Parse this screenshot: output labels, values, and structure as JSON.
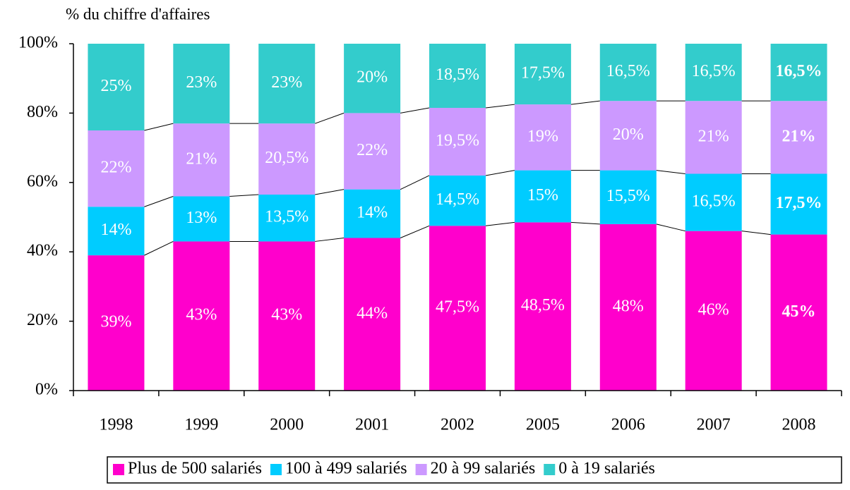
{
  "chart_data": {
    "type": "stacked_bar",
    "y_axis_label": "% du chiffre d'affaires",
    "categories": [
      "1998",
      "1999",
      "2000",
      "2001",
      "2002",
      "2005",
      "2006",
      "2007",
      "2008"
    ],
    "series": [
      {
        "name": "Plus de 500 salariés",
        "color": "#ff00cc",
        "values": [
          39,
          43,
          43,
          44,
          47.5,
          48.5,
          48,
          46,
          45
        ],
        "value_labels": [
          "39%",
          "43%",
          "43%",
          "44%",
          "47,5%",
          "48,5%",
          "48%",
          "46%",
          "45%"
        ]
      },
      {
        "name": "100 à 499 salariés",
        "color": "#00ccff",
        "values": [
          14,
          13,
          13.5,
          14,
          14.5,
          15,
          15.5,
          16.5,
          17.5
        ],
        "value_labels": [
          "14%",
          "13%",
          "13,5%",
          "14%",
          "14,5%",
          "15%",
          "15,5%",
          "16,5%",
          "17,5%"
        ]
      },
      {
        "name": "20 à 99 salariés",
        "color": "#cc99ff",
        "values": [
          22,
          21,
          20.5,
          22,
          19.5,
          19,
          20,
          21,
          21
        ],
        "value_labels": [
          "22%",
          "21%",
          "20,5%",
          "22%",
          "19,5%",
          "19%",
          "20%",
          "21%",
          "21%"
        ]
      },
      {
        "name": "0 à 19 salariés",
        "color": "#33cccc",
        "values": [
          25,
          23,
          23,
          20,
          18.5,
          17.5,
          16.5,
          16.5,
          16.5
        ],
        "value_labels": [
          "25%",
          "23%",
          "23%",
          "20%",
          "18,5%",
          "17,5%",
          "16,5%",
          "16,5%",
          "16,5%"
        ]
      }
    ],
    "ylim": [
      0,
      100
    ],
    "yticks": [
      {
        "value": 0,
        "label": "0%"
      },
      {
        "value": 20,
        "label": "20%"
      },
      {
        "value": 40,
        "label": "40%"
      },
      {
        "value": 60,
        "label": "60%"
      },
      {
        "value": 80,
        "label": "80%"
      },
      {
        "value": 100,
        "label": "100%"
      }
    ],
    "grid": false,
    "legend": "bottom",
    "bold_category_index": 8
  }
}
